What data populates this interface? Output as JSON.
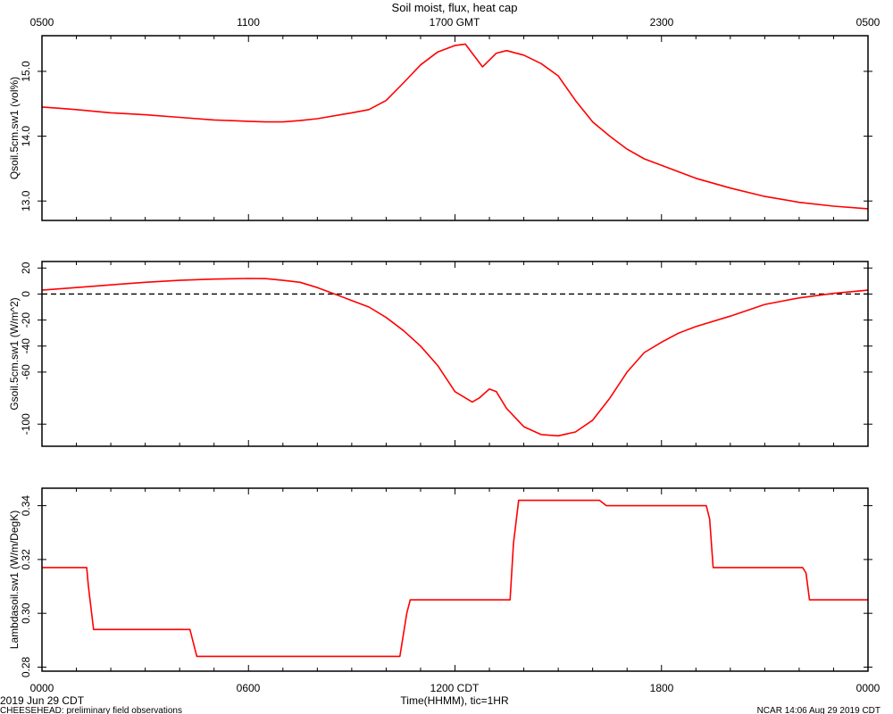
{
  "figure": {
    "title": "Soil moist, flux, heat cap",
    "top_axis_ticks": [
      "0500",
      "1100",
      "1700 GMT",
      "2300",
      "0500"
    ],
    "bottom_axis_ticks": [
      "0000",
      "0600",
      "1200 CDT",
      "1800",
      "0000"
    ],
    "xlabel": "Time(HHMM), tic=1HR",
    "date_label": "2019 Jun 29 CDT",
    "footer_left": "CHEESEHEAD: preliminary field observations",
    "footer_right": "NCAR 14:06 Aug 29 2019 CDT",
    "colors": {
      "series": "#ff0000",
      "axes": "#000000",
      "zero_line": "#000000"
    }
  },
  "chart_data": [
    {
      "type": "line",
      "ylabel": "Qsoil.5cm.sw1  (vol%)",
      "ylim": [
        12.7,
        15.55
      ],
      "yticks": [
        13.0,
        14.0,
        15.0
      ],
      "ytick_labels": [
        "13.0",
        "14.0",
        "15.0"
      ],
      "x_unit": "hours since 0000 CDT",
      "series": [
        {
          "x": [
            0,
            0.5,
            1,
            2,
            3,
            4,
            5,
            6,
            6.5,
            7,
            7.5,
            8,
            9,
            9.5,
            10,
            10.5,
            11,
            11.5,
            12,
            12.3,
            12.5,
            12.8,
            13.2,
            13.5,
            14,
            14.5,
            15,
            15.5,
            16,
            16.5,
            17,
            17.5,
            18,
            19,
            20,
            21,
            22,
            23,
            24
          ],
          "y": [
            14.45,
            14.43,
            14.41,
            14.36,
            14.33,
            14.29,
            14.25,
            14.23,
            14.22,
            14.22,
            14.24,
            14.27,
            14.36,
            14.41,
            14.55,
            14.82,
            15.1,
            15.3,
            15.4,
            15.42,
            15.28,
            15.07,
            15.28,
            15.32,
            15.25,
            15.12,
            14.93,
            14.55,
            14.22,
            14.0,
            13.8,
            13.65,
            13.55,
            13.35,
            13.2,
            13.07,
            12.98,
            12.92,
            12.88
          ]
        }
      ]
    },
    {
      "type": "line",
      "ylabel": "Gsoil.5cm.sw1 (W/m^2)",
      "ylim": [
        -117,
        25
      ],
      "yticks": [
        -100,
        -60,
        -40,
        -20,
        0,
        20
      ],
      "ytick_labels": [
        "-100",
        "-60",
        "-40",
        "-20",
        "0",
        "20"
      ],
      "zero_line": true,
      "series": [
        {
          "x": [
            0,
            1,
            2,
            3,
            4,
            5,
            6,
            6.5,
            7,
            7.5,
            8,
            8.5,
            9,
            9.5,
            10,
            10.5,
            11,
            11.5,
            12,
            12.5,
            12.7,
            13,
            13.2,
            13.5,
            14,
            14.5,
            15,
            15.5,
            16,
            16.5,
            17,
            17.5,
            18,
            18.5,
            19,
            20,
            21,
            22,
            23,
            24
          ],
          "y": [
            3,
            5,
            7,
            9,
            10.5,
            11.5,
            12,
            11.8,
            10.5,
            9,
            5,
            0,
            -5,
            -10,
            -18,
            -28,
            -40,
            -55,
            -75,
            -83,
            -80,
            -73,
            -75,
            -88,
            -102,
            -108,
            -109,
            -106,
            -97,
            -80,
            -60,
            -45,
            -37,
            -30,
            -25,
            -17,
            -8,
            -3,
            0.5,
            3
          ]
        }
      ]
    },
    {
      "type": "line",
      "ylabel": "Lambdasoil.sw1 (W/m/DegK)",
      "ylim": [
        0.2785,
        0.3465
      ],
      "yticks": [
        0.28,
        0.3,
        0.32,
        0.34
      ],
      "ytick_labels": [
        "0.28",
        "0.30",
        "0.32",
        "0.34"
      ],
      "series": [
        {
          "x": [
            0,
            1.3,
            1.35,
            1.5,
            4.3,
            4.5,
            10.4,
            10.6,
            10.7,
            13.6,
            13.7,
            13.85,
            16.2,
            16.4,
            19.3,
            19.4,
            19.5,
            22.1,
            22.2,
            22.3,
            24
          ],
          "y": [
            0.317,
            0.317,
            0.31,
            0.294,
            0.294,
            0.284,
            0.284,
            0.3,
            0.305,
            0.305,
            0.326,
            0.342,
            0.342,
            0.34,
            0.34,
            0.335,
            0.317,
            0.317,
            0.315,
            0.305,
            0.305
          ]
        }
      ]
    }
  ]
}
